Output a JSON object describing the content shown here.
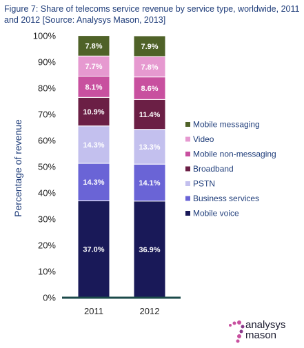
{
  "figure": {
    "title": "Figure 7: Share of telecoms service revenue by service type, worldwide, 2011 and 2012 [Source: Analysys Mason, 2013]"
  },
  "logo": {
    "line1": "analysys",
    "line2": "mason"
  },
  "colors": {
    "mobile_messaging": "#4f6228",
    "video": "#e699d0",
    "mobile_non_messaging": "#c8509f",
    "broadband": "#6b1f45",
    "pstn": "#c3c0ee",
    "business_services": "#6a64d6",
    "mobile_voice": "#191958"
  },
  "chart_data": {
    "type": "bar",
    "stacked": true,
    "categories": [
      "2011",
      "2012"
    ],
    "ylabel": "Percentage of revenue",
    "ylim": [
      0,
      100
    ],
    "yticks": [
      "0%",
      "10%",
      "20%",
      "30%",
      "40%",
      "50%",
      "60%",
      "70%",
      "80%",
      "90%",
      "100%"
    ],
    "legend_position": "right",
    "series": [
      {
        "name": "Mobile voice",
        "key": "mobile_voice",
        "values": [
          37.0,
          36.9
        ],
        "labels": [
          "37.0%",
          "36.9%"
        ]
      },
      {
        "name": "Business services",
        "key": "business_services",
        "values": [
          14.3,
          14.1
        ],
        "labels": [
          "14.3%",
          "14.1%"
        ]
      },
      {
        "name": "PSTN",
        "key": "pstn",
        "values": [
          14.3,
          13.3
        ],
        "labels": [
          "14.3%",
          "13.3%"
        ]
      },
      {
        "name": "Broadband",
        "key": "broadband",
        "values": [
          10.9,
          11.4
        ],
        "labels": [
          "10.9%",
          "11.4%"
        ]
      },
      {
        "name": "Mobile non-messaging",
        "key": "mobile_non_messaging",
        "values": [
          8.1,
          8.6
        ],
        "labels": [
          "8.1%",
          "8.6%"
        ]
      },
      {
        "name": "Video",
        "key": "video",
        "values": [
          7.7,
          7.8
        ],
        "labels": [
          "7.7%",
          "7.8%"
        ]
      },
      {
        "name": "Mobile messaging",
        "key": "mobile_messaging",
        "values": [
          7.8,
          7.9
        ],
        "labels": [
          "7.8%",
          "7.9%"
        ]
      }
    ]
  }
}
